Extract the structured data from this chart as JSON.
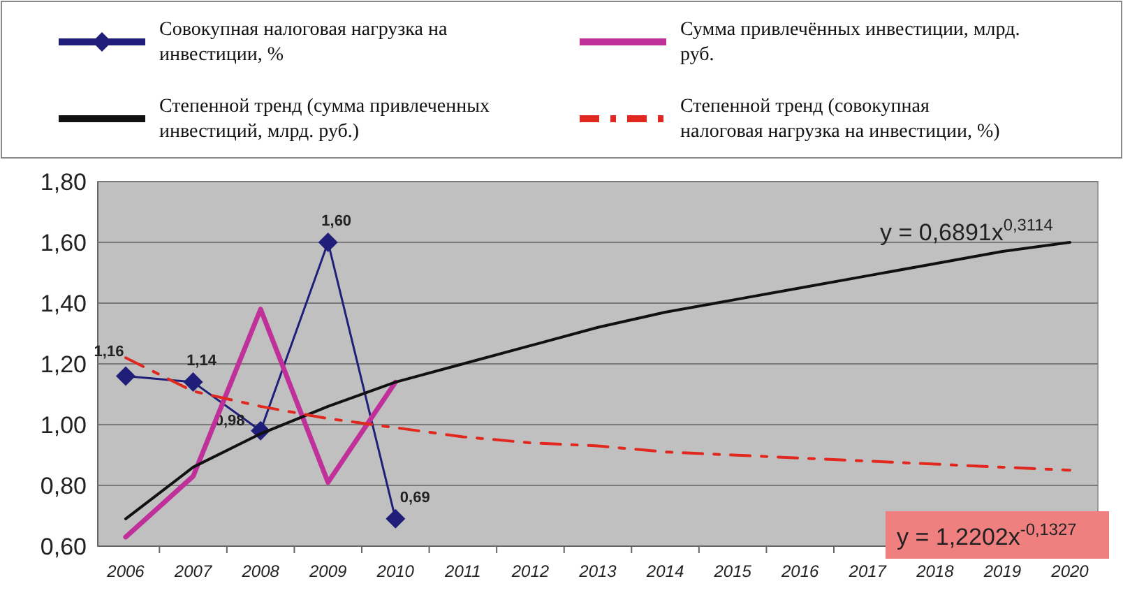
{
  "chart_data": {
    "type": "line",
    "categories": [
      "2006",
      "2007",
      "2008",
      "2009",
      "2010",
      "2011",
      "2012",
      "2013",
      "2014",
      "2015",
      "2016",
      "2017",
      "2018",
      "2019",
      "2020"
    ],
    "series": [
      {
        "name": "Совокупная налоговая нагрузка на инвестиции, %",
        "color": "#1f1f7a",
        "marker": "diamond",
        "values": [
          1.16,
          1.14,
          0.98,
          1.6,
          0.69,
          null,
          null,
          null,
          null,
          null,
          null,
          null,
          null,
          null,
          null
        ],
        "value_labels": [
          "1,16",
          "1,14",
          "0,98",
          "1,60",
          "0,69",
          null,
          null,
          null,
          null,
          null,
          null,
          null,
          null,
          null,
          null
        ]
      },
      {
        "name": "Сумма привлечённых инвестиции, млрд. руб.",
        "color": "#c0309a",
        "values": [
          0.63,
          0.83,
          1.38,
          0.81,
          1.14,
          null,
          null,
          null,
          null,
          null,
          null,
          null,
          null,
          null,
          null
        ]
      },
      {
        "name": "Степенной тренд (сумма привлеченных инвестиций, млрд. руб.)",
        "color": "#111111",
        "values": [
          0.69,
          0.86,
          0.97,
          1.06,
          1.14,
          1.2,
          1.26,
          1.32,
          1.37,
          1.41,
          1.45,
          1.49,
          1.53,
          1.57,
          1.6
        ]
      },
      {
        "name": "Степенной тренд (совокупная налоговая нагрузка на инвестиции, %)",
        "color": "#e0281e",
        "line_style": "dashed",
        "values": [
          1.22,
          1.11,
          1.06,
          1.02,
          0.99,
          0.96,
          0.94,
          0.93,
          0.91,
          0.9,
          0.89,
          0.88,
          0.87,
          0.86,
          0.85
        ]
      }
    ],
    "ylim": [
      0.6,
      1.8
    ],
    "yticks": [
      {
        "value": 0.6,
        "label": "0,60"
      },
      {
        "value": 0.8,
        "label": "0,80"
      },
      {
        "value": 1.0,
        "label": "1,00"
      },
      {
        "value": 1.2,
        "label": "1,20"
      },
      {
        "value": 1.4,
        "label": "1,40"
      },
      {
        "value": 1.6,
        "label": "1,60"
      },
      {
        "value": 1.8,
        "label": "1,80"
      }
    ],
    "grid": "y",
    "legend": "top",
    "annotations": [
      "y = 0,6891x$^{0,3114}$",
      "y = 1,2202x$^{-0,1327}$"
    ]
  }
}
